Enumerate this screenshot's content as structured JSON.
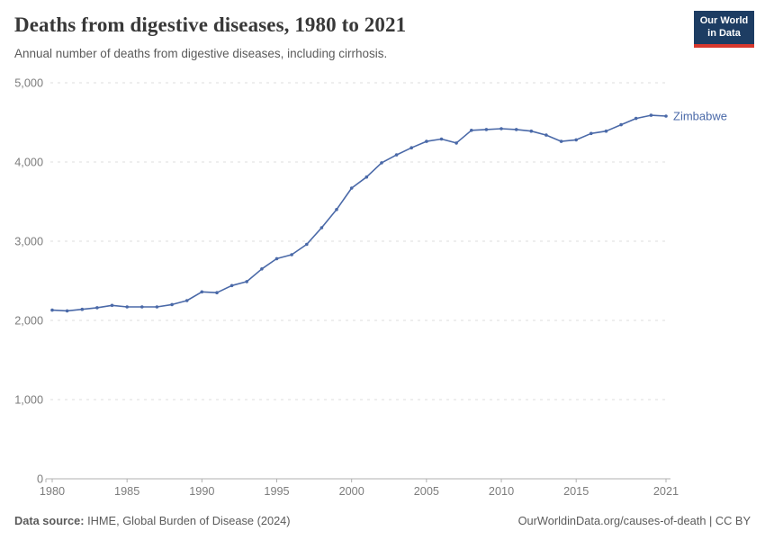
{
  "header": {
    "title": "Deaths from digestive diseases, 1980 to 2021",
    "subtitle": "Annual number of deaths from digestive diseases, including cirrhosis.",
    "logo": {
      "line1": "Our World",
      "line2": "in Data"
    }
  },
  "chart_data": {
    "type": "line",
    "title": "Deaths from digestive diseases, 1980 to 2021",
    "subtitle": "Annual number of deaths from digestive diseases, including cirrhosis.",
    "xlabel": "",
    "ylabel": "",
    "xlim": [
      1980,
      2021
    ],
    "ylim": [
      0,
      5000
    ],
    "xticks": [
      1980,
      1985,
      1990,
      1995,
      2000,
      2005,
      2010,
      2015,
      2021
    ],
    "yticks": [
      0,
      1000,
      2000,
      3000,
      4000,
      5000
    ],
    "grid": "horizontal-dashed",
    "legend_position": "end-of-line-label",
    "x": [
      1980,
      1981,
      1982,
      1983,
      1984,
      1985,
      1986,
      1987,
      1988,
      1989,
      1990,
      1991,
      1992,
      1993,
      1994,
      1995,
      1996,
      1997,
      1998,
      1999,
      2000,
      2001,
      2002,
      2003,
      2004,
      2005,
      2006,
      2007,
      2008,
      2009,
      2010,
      2011,
      2012,
      2013,
      2014,
      2015,
      2016,
      2017,
      2018,
      2019,
      2020,
      2021
    ],
    "series": [
      {
        "name": "Zimbabwe",
        "color": "#4a69a8",
        "values": [
          2130,
          2120,
          2140,
          2160,
          2190,
          2170,
          2170,
          2170,
          2200,
          2250,
          2360,
          2350,
          2440,
          2490,
          2650,
          2780,
          2830,
          2960,
          3170,
          3400,
          3670,
          3810,
          3990,
          4090,
          4180,
          4260,
          4290,
          4240,
          4400,
          4410,
          4420,
          4410,
          4390,
          4340,
          4260,
          4280,
          4360,
          4390,
          4470,
          4550,
          4590,
          4580
        ]
      }
    ]
  },
  "colors": {
    "grid": "#dcdcdc",
    "axis": "#b0b0b0",
    "axis_text": "#7d7d7d",
    "line": "#4a69a8",
    "logo_bg": "#1d3d63",
    "logo_accent": "#d7382d"
  },
  "footer": {
    "source_label": "Data source:",
    "source_text": " IHME, Global Burden of Disease (2024)",
    "link_text": "OurWorldinData.org/causes-of-death | CC BY"
  }
}
